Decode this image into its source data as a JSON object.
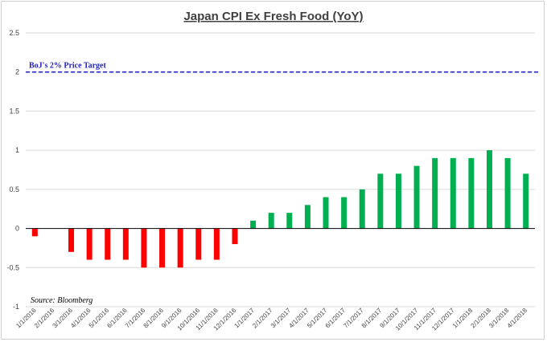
{
  "chart_data": {
    "type": "bar",
    "title": "Japan CPI Ex Fresh Food (YoY)",
    "xlabel": "",
    "ylabel": "",
    "ylim": [
      -1,
      2.5
    ],
    "yticks": [
      "2.5",
      "2",
      "1.5",
      "1",
      "0.5",
      "0",
      "-0.5",
      "-1"
    ],
    "grid": true,
    "categories": [
      "1/1/2016",
      "2/1/2016",
      "3/1/2016",
      "4/1/2016",
      "5/1/2016",
      "6/1/2016",
      "7/1/2016",
      "8/1/2016",
      "9/1/2016",
      "10/1/2016",
      "11/1/2016",
      "12/1/2016",
      "1/1/2017",
      "2/1/2017",
      "3/1/2017",
      "4/1/2017",
      "5/1/2017",
      "6/1/2017",
      "7/1/2017",
      "8/1/2017",
      "9/1/2017",
      "10/1/2017",
      "11/1/2017",
      "12/1/2017",
      "1/1/2018",
      "2/1/2018",
      "3/1/2018",
      "4/1/2018"
    ],
    "values": [
      -0.1,
      0,
      -0.3,
      -0.4,
      -0.4,
      -0.4,
      -0.5,
      -0.5,
      -0.5,
      -0.4,
      -0.4,
      -0.2,
      0.1,
      0.2,
      0.2,
      0.3,
      0.4,
      0.4,
      0.5,
      0.7,
      0.7,
      0.8,
      0.9,
      0.9,
      0.9,
      1.0,
      0.9,
      0.7
    ],
    "colors": {
      "negative": "#ff0000",
      "positive": "#00b050"
    },
    "reference_line": {
      "value": 2,
      "label": "BoJ's 2% Price Target",
      "color": "#1f1fbf"
    },
    "source": "Source: Bloomberg"
  }
}
